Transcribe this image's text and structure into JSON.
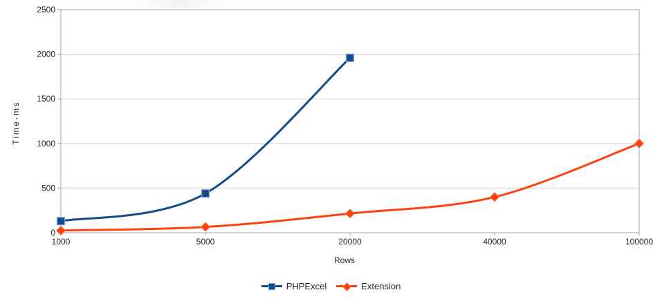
{
  "chart_data": {
    "type": "line",
    "title": "",
    "xlabel": "Rows",
    "ylabel": "Time-ms",
    "categories": [
      "1000",
      "5000",
      "20000",
      "40000",
      "100000"
    ],
    "y_ticks": [
      0,
      500,
      1000,
      1500,
      2000,
      2500
    ],
    "ylim": [
      0,
      2500
    ],
    "grid": "horizontal",
    "smooth_lines": true,
    "legend_position": "bottom-center",
    "series": [
      {
        "name": "PHPExcel",
        "color": "#124B87",
        "marker": "square",
        "marker_border": "#7FA8D9",
        "values": [
          130,
          440,
          1960,
          null,
          null
        ]
      },
      {
        "name": "Extension",
        "color": "#FB430F",
        "marker": "diamond",
        "marker_border": "#FF7A4D",
        "values": [
          25,
          65,
          215,
          400,
          1000
        ]
      }
    ]
  },
  "style_colors": {
    "plot_border": "#b3b3b3",
    "gridline": "#d9d9d9",
    "tick": "#adadad",
    "label_text": "#262626"
  }
}
